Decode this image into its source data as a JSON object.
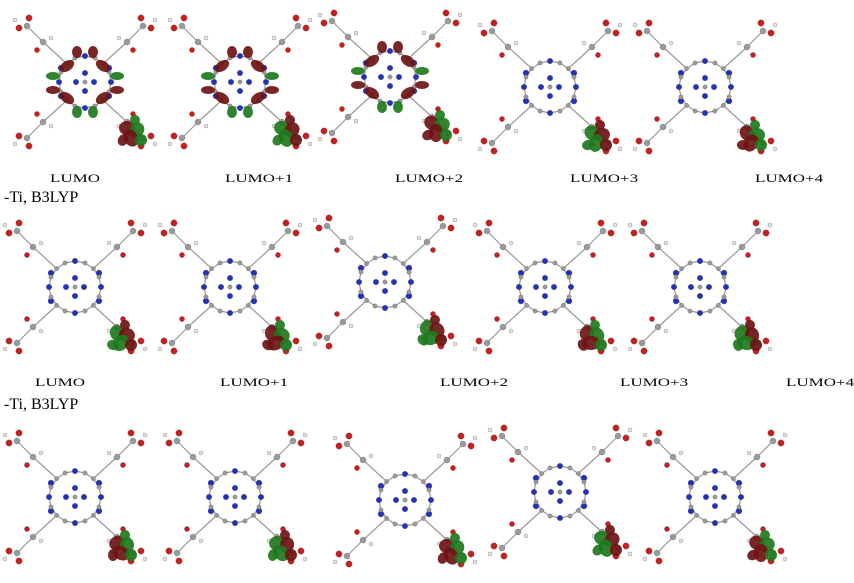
{
  "labels": {
    "row1": [
      "LUMO",
      "LUMO+1",
      "LUMO+2",
      "LUMO+3",
      "LUMO+4"
    ],
    "row2": [
      "LUMO",
      "LUMO+1",
      "LUMO+2",
      "LUMO+3",
      "LUMO+4"
    ]
  },
  "row_tags": {
    "row2": "-Ti, B3LYP",
    "row3": "-Ti, B3LYP"
  },
  "colors": {
    "lobe_red": "#6e1414",
    "lobe_green": "#1e7a1e",
    "oxygen": "#c81e1e",
    "nitrogen": "#2233bb",
    "carbon": "#9a9a9a",
    "hydrogen": "#e6e6e6"
  },
  "orbital_panels": {
    "row1": [
      "core",
      "core",
      "core",
      "anchor",
      "anchor"
    ],
    "row2": [
      "anchor",
      "anchor",
      "anchor",
      "anchor",
      "anchor"
    ],
    "row3": [
      "anchor",
      "anchor",
      "anchor",
      "anchor",
      "anchor"
    ]
  }
}
